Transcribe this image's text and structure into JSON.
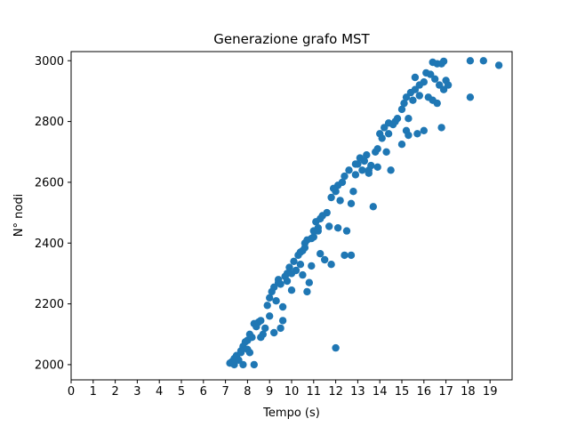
{
  "chart_data": {
    "type": "scatter",
    "title": "Generazione grafo MST",
    "xlabel": "Tempo (s)",
    "ylabel": "N° nodi",
    "xlim": [
      0,
      20
    ],
    "ylim": [
      1950,
      3030
    ],
    "x_ticks": [
      0,
      1,
      2,
      3,
      4,
      5,
      6,
      7,
      8,
      9,
      10,
      11,
      12,
      13,
      14,
      15,
      16,
      17,
      18,
      19
    ],
    "y_ticks": [
      2000,
      2200,
      2400,
      2600,
      2800,
      3000
    ],
    "grid": false,
    "legend": "none",
    "marker_color": "#1f77b4",
    "points": [
      [
        7.2,
        2005
      ],
      [
        7.3,
        2010
      ],
      [
        7.4,
        2000
      ],
      [
        7.4,
        2020
      ],
      [
        7.5,
        2030
      ],
      [
        7.6,
        2015
      ],
      [
        7.7,
        2040
      ],
      [
        7.8,
        2000
      ],
      [
        7.8,
        2060
      ],
      [
        7.9,
        2075
      ],
      [
        8.0,
        2050
      ],
      [
        8.0,
        2080
      ],
      [
        8.1,
        2100
      ],
      [
        8.1,
        2040
      ],
      [
        8.2,
        2090
      ],
      [
        8.3,
        2135
      ],
      [
        8.3,
        2000
      ],
      [
        8.4,
        2125
      ],
      [
        8.5,
        2140
      ],
      [
        8.6,
        2145
      ],
      [
        8.7,
        2100
      ],
      [
        8.8,
        2120
      ],
      [
        8.9,
        2195
      ],
      [
        9.0,
        2160
      ],
      [
        9.0,
        2220
      ],
      [
        9.1,
        2240
      ],
      [
        9.2,
        2105
      ],
      [
        9.2,
        2255
      ],
      [
        9.3,
        2210
      ],
      [
        9.4,
        2280
      ],
      [
        9.5,
        2120
      ],
      [
        9.5,
        2265
      ],
      [
        9.6,
        2145
      ],
      [
        9.6,
        2190
      ],
      [
        9.7,
        2290
      ],
      [
        9.8,
        2300
      ],
      [
        9.8,
        2275
      ],
      [
        9.9,
        2320
      ],
      [
        10.0,
        2245
      ],
      [
        10.0,
        2300
      ],
      [
        10.1,
        2340
      ],
      [
        10.2,
        2310
      ],
      [
        10.3,
        2360
      ],
      [
        10.4,
        2330
      ],
      [
        10.5,
        2375
      ],
      [
        10.5,
        2295
      ],
      [
        10.6,
        2400
      ],
      [
        10.6,
        2385
      ],
      [
        10.7,
        2410
      ],
      [
        10.7,
        2240
      ],
      [
        10.8,
        2270
      ],
      [
        10.9,
        2415
      ],
      [
        10.9,
        2325
      ],
      [
        11.0,
        2420
      ],
      [
        11.0,
        2440
      ],
      [
        11.1,
        2470
      ],
      [
        11.2,
        2450
      ],
      [
        11.3,
        2480
      ],
      [
        11.3,
        2365
      ],
      [
        11.4,
        2490
      ],
      [
        11.5,
        2345
      ],
      [
        11.6,
        2500
      ],
      [
        11.7,
        2455
      ],
      [
        11.8,
        2550
      ],
      [
        11.8,
        2330
      ],
      [
        12.0,
        2570
      ],
      [
        12.0,
        2055
      ],
      [
        12.1,
        2590
      ],
      [
        12.1,
        2450
      ],
      [
        12.2,
        2540
      ],
      [
        12.3,
        2600
      ],
      [
        12.4,
        2620
      ],
      [
        12.4,
        2360
      ],
      [
        12.5,
        2440
      ],
      [
        12.6,
        2640
      ],
      [
        12.7,
        2360
      ],
      [
        12.7,
        2530
      ],
      [
        12.8,
        2570
      ],
      [
        12.9,
        2625
      ],
      [
        13.0,
        2660
      ],
      [
        13.1,
        2680
      ],
      [
        13.2,
        2640
      ],
      [
        13.3,
        2670
      ],
      [
        13.4,
        2690
      ],
      [
        13.5,
        2640
      ],
      [
        13.6,
        2655
      ],
      [
        13.7,
        2520
      ],
      [
        13.8,
        2700
      ],
      [
        13.9,
        2710
      ],
      [
        14.0,
        2760
      ],
      [
        14.1,
        2745
      ],
      [
        14.2,
        2780
      ],
      [
        14.3,
        2700
      ],
      [
        14.4,
        2795
      ],
      [
        14.5,
        2640
      ],
      [
        14.6,
        2790
      ],
      [
        14.7,
        2800
      ],
      [
        14.8,
        2810
      ],
      [
        15.0,
        2725
      ],
      [
        15.0,
        2840
      ],
      [
        15.1,
        2860
      ],
      [
        15.2,
        2880
      ],
      [
        15.2,
        2770
      ],
      [
        15.3,
        2755
      ],
      [
        15.3,
        2810
      ],
      [
        15.4,
        2895
      ],
      [
        15.5,
        2870
      ],
      [
        15.6,
        2905
      ],
      [
        15.7,
        2760
      ],
      [
        15.8,
        2920
      ],
      [
        16.0,
        2770
      ],
      [
        16.0,
        2930
      ],
      [
        16.1,
        2960
      ],
      [
        16.2,
        2880
      ],
      [
        16.3,
        2955
      ],
      [
        16.4,
        2870
      ],
      [
        16.5,
        2940
      ],
      [
        16.6,
        2990
      ],
      [
        16.6,
        2860
      ],
      [
        16.7,
        2920
      ],
      [
        16.8,
        2780
      ],
      [
        16.9,
        2905
      ],
      [
        17.0,
        2935
      ],
      [
        17.1,
        2920
      ],
      [
        18.1,
        3000
      ],
      [
        18.1,
        2880
      ],
      [
        18.7,
        3000
      ],
      [
        19.4,
        2985
      ],
      [
        16.9,
        2998
      ],
      [
        16.8,
        2990
      ],
      [
        15.6,
        2945
      ],
      [
        14.4,
        2760
      ],
      [
        13.5,
        2630
      ],
      [
        12.9,
        2660
      ],
      [
        11.9,
        2580
      ],
      [
        11.2,
        2440
      ],
      [
        10.4,
        2370
      ],
      [
        9.4,
        2270
      ],
      [
        8.6,
        2090
      ],
      [
        7.7,
        2045
      ],
      [
        13.9,
        2650
      ],
      [
        15.8,
        2885
      ],
      [
        16.4,
        2995
      ]
    ]
  }
}
